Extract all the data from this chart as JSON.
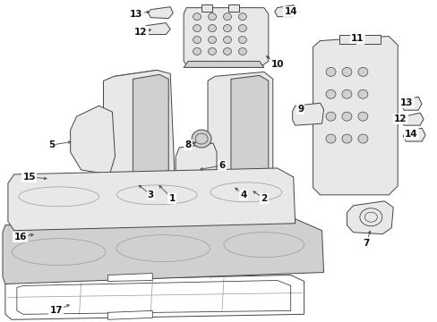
{
  "background_color": "#ffffff",
  "figure_width": 4.89,
  "figure_height": 3.6,
  "dpi": 100,
  "gray": "#444444",
  "lgray": "#999999",
  "fill_light": "#e8e8e8",
  "fill_mid": "#d0d0d0",
  "fill_dark": "#b8b8b8"
}
